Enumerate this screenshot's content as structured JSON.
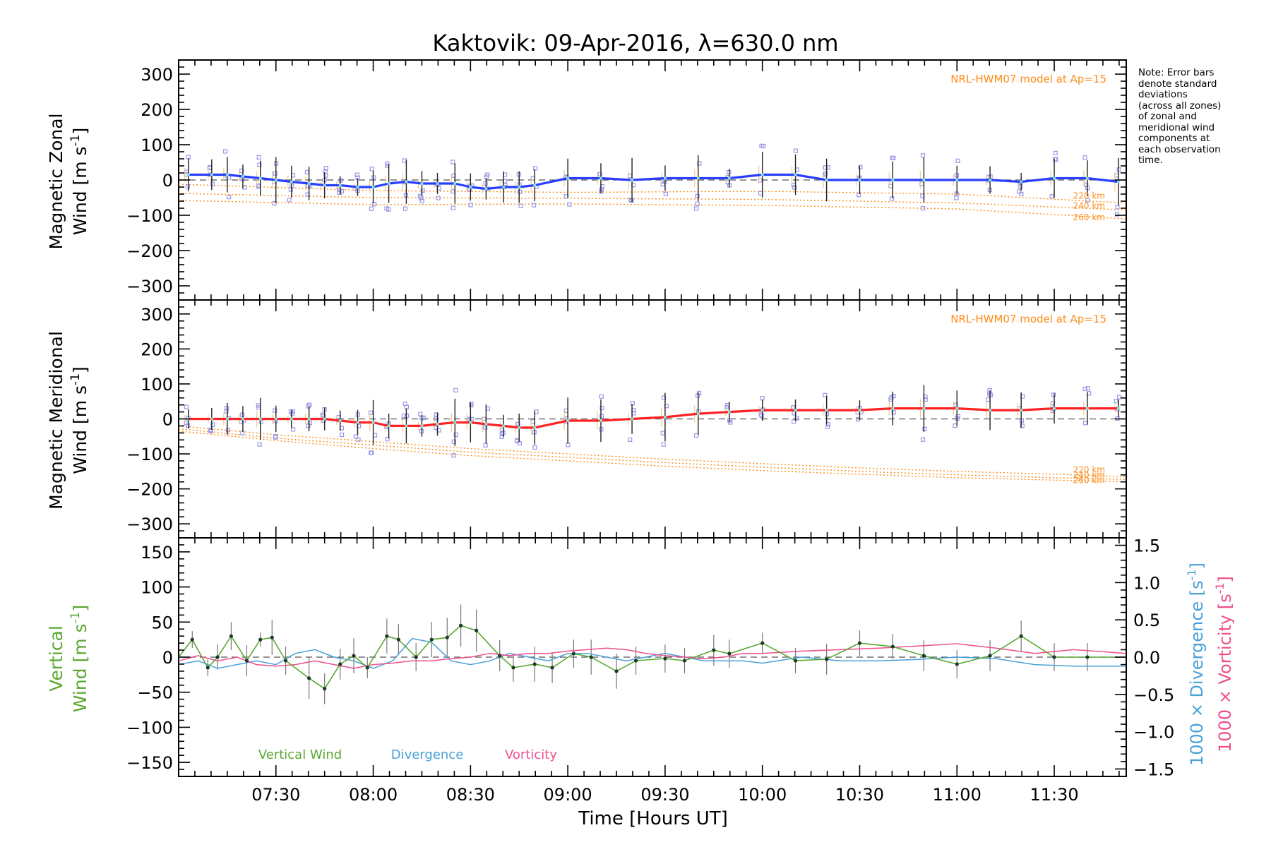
{
  "title": "Kaktovik: 09-Apr-2016, λ=630.0 nm",
  "note": "Note: Error bars\ndenote standard\ndeviations\n(across all zones)\nof zonal and\nmeridional wind\ncomponents at\neach observation\ntime.",
  "xlabel": "Time [Hours UT]",
  "xticks": [
    "07:30",
    "08:00",
    "08:30",
    "09:00",
    "09:30",
    "10:00",
    "10:30",
    "11:00",
    "11:30"
  ],
  "colors": {
    "zonal": "#2a3cff",
    "meridional": "#ff2222",
    "vertical": "#5aa832",
    "divergence": "#4aa0d8",
    "vorticity": "#ee4f8c",
    "model": "#ff8c1a",
    "zone": "#9a9ae6"
  },
  "chart_data": [
    {
      "type": "line",
      "name": "zonal",
      "ylabel_line1": "Magnetic Zonal",
      "ylabel_line2": "Wind [m s",
      "ylabel_sup": "-1",
      "ylabel_end": "]",
      "yticks": [
        300,
        200,
        100,
        0,
        -100,
        -200,
        -300
      ],
      "ylim": [
        -340,
        340
      ],
      "model_label": "NRL-HWM07 model at Ap=15",
      "model_levels": [
        "220 km",
        "240 km",
        "260 km"
      ],
      "x": [
        7.05,
        7.17,
        7.25,
        7.33,
        7.42,
        7.5,
        7.58,
        7.67,
        7.75,
        7.83,
        7.92,
        8.0,
        8.08,
        8.17,
        8.25,
        8.33,
        8.42,
        8.5,
        8.58,
        8.67,
        8.75,
        8.83,
        9.0,
        9.17,
        9.33,
        9.5,
        9.67,
        9.83,
        10.0,
        10.17,
        10.33,
        10.5,
        10.67,
        10.83,
        11.0,
        11.17,
        11.33,
        11.5,
        11.67,
        11.83
      ],
      "values": [
        15,
        15,
        15,
        10,
        5,
        0,
        -5,
        -10,
        -15,
        -15,
        -20,
        -20,
        -10,
        -5,
        -10,
        -10,
        -10,
        -20,
        -25,
        -20,
        -20,
        -15,
        5,
        5,
        0,
        5,
        5,
        5,
        15,
        15,
        0,
        0,
        0,
        0,
        0,
        0,
        -5,
        5,
        5,
        -5
      ],
      "model": [
        {
          "name": "220 km",
          "x": [
            7.0,
            8.0,
            9.0,
            10.0,
            11.0,
            11.87
          ],
          "values": [
            -12,
            -30,
            -35,
            -32,
            -40,
            -65
          ]
        },
        {
          "name": "240 km",
          "x": [
            7.0,
            8.0,
            9.0,
            10.0,
            11.0,
            11.87
          ],
          "values": [
            -38,
            -50,
            -52,
            -55,
            -65,
            -85
          ]
        },
        {
          "name": "260 km",
          "x": [
            7.0,
            8.0,
            9.0,
            10.0,
            11.0,
            11.87
          ],
          "values": [
            -58,
            -70,
            -68,
            -72,
            -82,
            -110
          ]
        }
      ]
    },
    {
      "type": "line",
      "name": "meridional",
      "ylabel_line1": "Magnetic Meridional",
      "ylabel_line2": "Wind [m s",
      "ylabel_sup": "-1",
      "ylabel_end": "]",
      "yticks": [
        300,
        200,
        100,
        0,
        -100,
        -200,
        -300
      ],
      "ylim": [
        -340,
        340
      ],
      "model_label": "NRL-HWM07 model at Ap=15",
      "model_levels": [
        "220 km",
        "240 km",
        "260 km"
      ],
      "x": [
        7.05,
        7.17,
        7.25,
        7.33,
        7.42,
        7.5,
        7.58,
        7.67,
        7.75,
        7.83,
        7.92,
        8.0,
        8.08,
        8.17,
        8.25,
        8.33,
        8.42,
        8.5,
        8.58,
        8.67,
        8.75,
        8.83,
        9.0,
        9.17,
        9.33,
        9.5,
        9.67,
        9.83,
        10.0,
        10.17,
        10.33,
        10.5,
        10.67,
        10.83,
        11.0,
        11.17,
        11.33,
        11.5,
        11.67,
        11.83
      ],
      "values": [
        0,
        0,
        0,
        0,
        0,
        0,
        0,
        0,
        0,
        -5,
        -10,
        -10,
        -20,
        -20,
        -20,
        -15,
        -10,
        -10,
        -15,
        -20,
        -25,
        -25,
        -5,
        -5,
        0,
        5,
        15,
        20,
        25,
        25,
        25,
        25,
        30,
        30,
        30,
        25,
        25,
        30,
        30,
        30
      ],
      "model": [
        {
          "name": "220 km",
          "x": [
            7.0,
            7.5,
            8.0,
            8.5,
            9.0,
            9.5,
            10.0,
            10.5,
            11.0,
            11.5,
            11.87
          ],
          "values": [
            -20,
            -45,
            -65,
            -85,
            -100,
            -115,
            -128,
            -140,
            -150,
            -158,
            -165
          ]
        },
        {
          "name": "240 km",
          "x": [
            7.0,
            7.5,
            8.0,
            8.5,
            9.0,
            9.5,
            10.0,
            10.5,
            11.0,
            11.5,
            11.87
          ],
          "values": [
            -28,
            -55,
            -75,
            -95,
            -110,
            -125,
            -138,
            -150,
            -160,
            -168,
            -173
          ]
        },
        {
          "name": "260 km",
          "x": [
            7.0,
            7.5,
            8.0,
            8.5,
            9.0,
            9.5,
            10.0,
            10.5,
            11.0,
            11.5,
            11.87
          ],
          "values": [
            -35,
            -62,
            -85,
            -105,
            -120,
            -135,
            -148,
            -158,
            -168,
            -175,
            -180
          ]
        }
      ]
    },
    {
      "type": "line",
      "name": "vertical",
      "ylabel_line1": "Vertical",
      "ylabel_line2": "Wind [m s",
      "ylabel_sup": "-1",
      "ylabel_end": "]",
      "yticks": [
        150,
        100,
        50,
        0,
        -50,
        -100,
        -150
      ],
      "ylim": [
        -170,
        170
      ],
      "y2label_a_pre": "1000 × Divergence [s",
      "y2label_b_pre": "1000 × Vorticity [s",
      "y2label_sup": "-1",
      "y2label_end": "]",
      "y2ticks": [
        "1.5",
        "1.0",
        "0.5",
        "0.0",
        "-0.5",
        "-1.0",
        "-1.5"
      ],
      "y2ticks_values": [
        1.5,
        1.0,
        0.5,
        0.0,
        -0.5,
        -1.0,
        -1.5
      ],
      "y2lim": [
        -1.6,
        1.6
      ],
      "legend": [
        "Vertical Wind",
        "Divergence",
        "Vorticity"
      ],
      "vertical": {
        "x": [
          7.0,
          7.07,
          7.15,
          7.2,
          7.27,
          7.35,
          7.42,
          7.48,
          7.55,
          7.67,
          7.75,
          7.83,
          7.9,
          7.97,
          8.07,
          8.13,
          8.22,
          8.3,
          8.38,
          8.45,
          8.53,
          8.65,
          8.72,
          8.83,
          8.92,
          9.03,
          9.12,
          9.25,
          9.35,
          9.5,
          9.6,
          9.75,
          9.83,
          10.0,
          10.17,
          10.33,
          10.5,
          10.67,
          10.83,
          11.0,
          11.17,
          11.33,
          11.5,
          11.67,
          11.87
        ],
        "values": [
          0,
          25,
          -15,
          0,
          30,
          -5,
          25,
          28,
          -5,
          -30,
          -45,
          -10,
          2,
          -15,
          30,
          25,
          0,
          25,
          28,
          45,
          38,
          2,
          -15,
          -10,
          -15,
          5,
          0,
          -20,
          -5,
          -2,
          -5,
          10,
          5,
          20,
          -5,
          -3,
          20,
          15,
          2,
          -10,
          2,
          30,
          0,
          0,
          0
        ],
        "errors": [
          0,
          12,
          12,
          18,
          20,
          22,
          10,
          25,
          20,
          30,
          22,
          22,
          25,
          15,
          25,
          22,
          20,
          25,
          28,
          30,
          30,
          22,
          20,
          25,
          22,
          20,
          25,
          25,
          20,
          20,
          18,
          22,
          20,
          15,
          18,
          22,
          18,
          18,
          22,
          20,
          22,
          22,
          20,
          20,
          0
        ]
      },
      "divergence": {
        "x": [
          7.0,
          7.1,
          7.2,
          7.3,
          7.4,
          7.5,
          7.6,
          7.7,
          7.8,
          7.9,
          8.0,
          8.1,
          8.2,
          8.3,
          8.4,
          8.5,
          8.6,
          8.7,
          8.8,
          8.9,
          9.0,
          9.1,
          9.2,
          9.3,
          9.4,
          9.5,
          9.6,
          9.7,
          9.8,
          9.9,
          10.0,
          10.2,
          10.4,
          10.6,
          10.8,
          11.0,
          11.2,
          11.4,
          11.6,
          11.87
        ],
        "values": [
          -0.1,
          -0.05,
          -0.15,
          -0.1,
          -0.05,
          -0.1,
          0.05,
          0.1,
          0.0,
          -0.05,
          -0.15,
          -0.05,
          0.25,
          0.2,
          -0.05,
          -0.1,
          -0.05,
          0.05,
          0.0,
          -0.05,
          0.05,
          0.05,
          0.0,
          -0.05,
          0.0,
          0.05,
          0.0,
          -0.05,
          -0.05,
          -0.05,
          -0.08,
          0.0,
          -0.05,
          -0.05,
          -0.03,
          0.0,
          -0.02,
          -0.1,
          -0.12,
          -0.12
        ]
      },
      "vorticity": {
        "x": [
          7.0,
          7.1,
          7.2,
          7.3,
          7.4,
          7.5,
          7.6,
          7.7,
          7.8,
          7.9,
          8.0,
          8.1,
          8.2,
          8.3,
          8.4,
          8.5,
          8.6,
          8.7,
          8.8,
          8.9,
          9.0,
          9.1,
          9.2,
          9.3,
          9.4,
          9.5,
          9.6,
          9.7,
          9.8,
          9.9,
          10.0,
          10.2,
          10.4,
          10.6,
          10.8,
          11.0,
          11.2,
          11.4,
          11.6,
          11.87
        ],
        "values": [
          -0.05,
          0.02,
          -0.05,
          0.0,
          -0.1,
          -0.12,
          -0.1,
          -0.05,
          -0.1,
          -0.15,
          -0.1,
          -0.08,
          -0.05,
          -0.05,
          -0.02,
          0.0,
          0.05,
          0.02,
          0.05,
          0.05,
          0.08,
          0.1,
          0.12,
          0.1,
          0.05,
          0.02,
          0.0,
          -0.02,
          0.0,
          0.05,
          0.05,
          0.08,
          0.1,
          0.12,
          0.15,
          0.18,
          0.12,
          0.05,
          0.1,
          0.05
        ]
      }
    }
  ]
}
